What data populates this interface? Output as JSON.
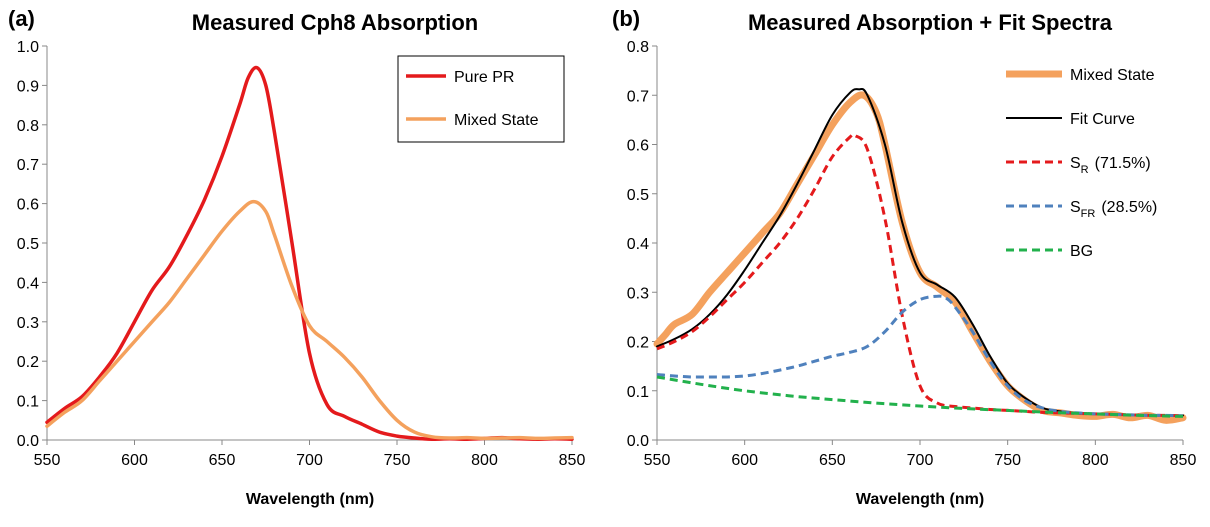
{
  "chart_data": [
    {
      "panel_label": "(a)",
      "type": "line",
      "title": "Measured Cph8 Absorption",
      "xlabel": "Wavelength (nm)",
      "ylabel": "",
      "xlim": [
        550,
        850
      ],
      "ylim": [
        0,
        1.0
      ],
      "xticks": [
        "550",
        "600",
        "650",
        "700",
        "750",
        "800",
        "850"
      ],
      "yticks": [
        "0.0",
        "0.1",
        "0.2",
        "0.3",
        "0.4",
        "0.5",
        "0.6",
        "0.7",
        "0.8",
        "0.9",
        "1.0"
      ],
      "legend": {
        "placement": "top-right",
        "boxed": true
      },
      "series": [
        {
          "name": "Pure PR",
          "color": "#e41a1c",
          "style": "solid",
          "x": [
            550,
            560,
            570,
            580,
            590,
            600,
            610,
            620,
            630,
            640,
            650,
            660,
            665,
            670,
            675,
            680,
            690,
            700,
            710,
            720,
            730,
            740,
            750,
            760,
            770,
            780,
            790,
            800,
            810,
            820,
            830,
            840,
            850
          ],
          "y": [
            0.045,
            0.08,
            0.11,
            0.16,
            0.22,
            0.3,
            0.38,
            0.44,
            0.52,
            0.61,
            0.72,
            0.85,
            0.92,
            0.945,
            0.9,
            0.78,
            0.5,
            0.22,
            0.09,
            0.06,
            0.04,
            0.02,
            0.01,
            0.005,
            0.002,
            0.003,
            0.002,
            0.004,
            0.006,
            0.003,
            0.002,
            0.003,
            0.002
          ]
        },
        {
          "name": "Mixed State",
          "color": "#f4a15d",
          "style": "solid",
          "x": [
            550,
            560,
            570,
            580,
            590,
            600,
            610,
            620,
            630,
            640,
            650,
            660,
            668,
            675,
            680,
            690,
            700,
            710,
            720,
            730,
            740,
            750,
            760,
            770,
            780,
            790,
            800,
            810,
            820,
            830,
            840,
            850
          ],
          "y": [
            0.035,
            0.07,
            0.1,
            0.15,
            0.2,
            0.25,
            0.3,
            0.35,
            0.41,
            0.47,
            0.53,
            0.58,
            0.605,
            0.58,
            0.52,
            0.39,
            0.29,
            0.25,
            0.21,
            0.16,
            0.1,
            0.05,
            0.02,
            0.008,
            0.005,
            0.006,
            0.004,
            0.005,
            0.006,
            0.004,
            0.005,
            0.006
          ]
        }
      ]
    },
    {
      "panel_label": "(b)",
      "type": "line",
      "title": "Measured Absorption + Fit Spectra",
      "xlabel": "Wavelength (nm)",
      "ylabel": "",
      "xlim": [
        550,
        850
      ],
      "ylim": [
        0,
        0.8
      ],
      "xticks": [
        "550",
        "600",
        "650",
        "700",
        "750",
        "800",
        "850"
      ],
      "yticks": [
        "0.0",
        "0.1",
        "0.2",
        "0.3",
        "0.4",
        "0.5",
        "0.6",
        "0.7",
        "0.8"
      ],
      "legend": {
        "placement": "right",
        "boxed": false
      },
      "series": [
        {
          "name": "Mixed State",
          "color": "#f4a15d",
          "style": "thick",
          "x": [
            550,
            555,
            560,
            570,
            580,
            590,
            600,
            610,
            620,
            630,
            640,
            650,
            660,
            668,
            675,
            680,
            690,
            700,
            710,
            720,
            730,
            740,
            750,
            760,
            770,
            780,
            790,
            800,
            810,
            820,
            830,
            840,
            850
          ],
          "y": [
            0.195,
            0.215,
            0.235,
            0.255,
            0.3,
            0.34,
            0.38,
            0.42,
            0.46,
            0.52,
            0.58,
            0.64,
            0.685,
            0.7,
            0.665,
            0.6,
            0.44,
            0.34,
            0.31,
            0.28,
            0.22,
            0.16,
            0.11,
            0.08,
            0.06,
            0.055,
            0.05,
            0.048,
            0.052,
            0.045,
            0.05,
            0.04,
            0.045
          ]
        },
        {
          "name": "Fit Curve",
          "color": "#000000",
          "style": "solid",
          "x": [
            550,
            560,
            570,
            580,
            590,
            600,
            610,
            620,
            630,
            640,
            650,
            660,
            665,
            670,
            680,
            690,
            700,
            710,
            720,
            730,
            740,
            750,
            760,
            770,
            780,
            790,
            800,
            810,
            820,
            830,
            840,
            850
          ],
          "y": [
            0.19,
            0.205,
            0.225,
            0.255,
            0.295,
            0.345,
            0.4,
            0.455,
            0.52,
            0.59,
            0.66,
            0.705,
            0.712,
            0.7,
            0.6,
            0.44,
            0.34,
            0.315,
            0.29,
            0.235,
            0.17,
            0.115,
            0.085,
            0.065,
            0.058,
            0.055,
            0.053,
            0.052,
            0.051,
            0.05,
            0.05,
            0.05
          ]
        },
        {
          "name": "S_R (71.5%)",
          "label_main": "S",
          "label_sub": "R",
          "label_rest": "(71.5%)",
          "color": "#e41a1c",
          "style": "dashed",
          "x": [
            550,
            560,
            570,
            580,
            590,
            600,
            610,
            620,
            630,
            640,
            650,
            660,
            663,
            670,
            680,
            690,
            700,
            710,
            720,
            730,
            740,
            750,
            760,
            770,
            780,
            790,
            800,
            810,
            820,
            830,
            840,
            850
          ],
          "y": [
            0.185,
            0.2,
            0.22,
            0.25,
            0.285,
            0.32,
            0.36,
            0.4,
            0.45,
            0.51,
            0.575,
            0.615,
            0.618,
            0.59,
            0.45,
            0.25,
            0.11,
            0.075,
            0.068,
            0.065,
            0.062,
            0.06,
            0.058,
            0.056,
            0.055,
            0.054,
            0.053,
            0.052,
            0.051,
            0.05,
            0.05,
            0.049
          ]
        },
        {
          "name": "S_FR (28.5%)",
          "label_main": "S",
          "label_sub": "FR",
          "label_rest": "(28.5%)",
          "color": "#4f81bd",
          "style": "dashed",
          "x": [
            550,
            560,
            570,
            580,
            590,
            600,
            610,
            620,
            630,
            640,
            650,
            660,
            670,
            680,
            690,
            700,
            710,
            715,
            720,
            730,
            740,
            750,
            760,
            770,
            780,
            790,
            800,
            810,
            820,
            830,
            840,
            850
          ],
          "y": [
            0.133,
            0.13,
            0.128,
            0.128,
            0.128,
            0.13,
            0.135,
            0.142,
            0.15,
            0.16,
            0.17,
            0.178,
            0.19,
            0.22,
            0.26,
            0.285,
            0.292,
            0.288,
            0.27,
            0.22,
            0.16,
            0.11,
            0.08,
            0.065,
            0.058,
            0.055,
            0.053,
            0.052,
            0.051,
            0.05,
            0.05,
            0.049
          ]
        },
        {
          "name": "BG",
          "color": "#22b14c",
          "style": "dashed",
          "x": [
            550,
            575,
            600,
            625,
            650,
            675,
            700,
            725,
            750,
            775,
            800,
            825,
            850
          ],
          "y": [
            0.128,
            0.113,
            0.1,
            0.09,
            0.082,
            0.075,
            0.069,
            0.064,
            0.06,
            0.056,
            0.053,
            0.05,
            0.048
          ]
        }
      ]
    }
  ]
}
